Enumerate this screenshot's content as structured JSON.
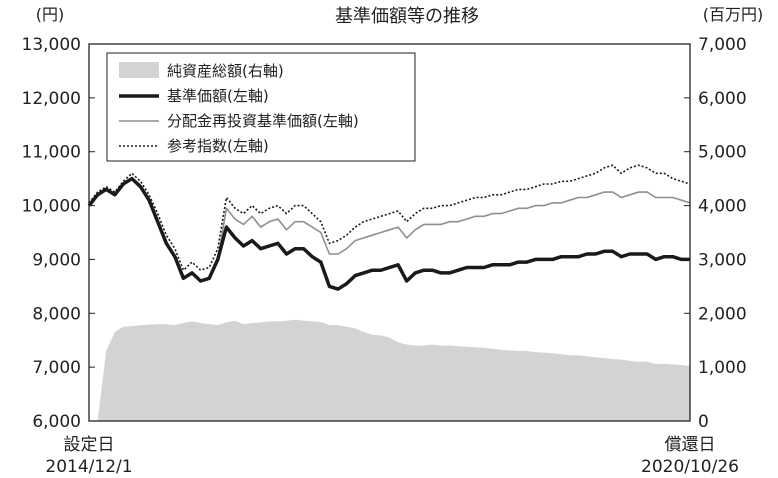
{
  "chart_data": {
    "type": "line",
    "title": "基準価額等の推移",
    "left_unit": "(円)",
    "right_unit": "(百万円)",
    "left_axis": {
      "min": 6000,
      "max": 13000,
      "ticks": [
        "6,000",
        "7,000",
        "8,000",
        "9,000",
        "10,000",
        "11,000",
        "12,000",
        "13,000"
      ],
      "tick_values": [
        6000,
        7000,
        8000,
        9000,
        10000,
        11000,
        12000,
        13000
      ]
    },
    "right_axis": {
      "min": 0,
      "max": 7000,
      "ticks": [
        "0",
        "1,000",
        "2,000",
        "3,000",
        "4,000",
        "5,000",
        "6,000",
        "7,000"
      ],
      "tick_values": [
        0,
        1000,
        2000,
        3000,
        4000,
        5000,
        6000,
        7000
      ]
    },
    "x_start": {
      "label_top": "設定日",
      "label_bottom": "2014/12/1"
    },
    "x_end": {
      "label_top": "償還日",
      "label_bottom": "2020/10/26"
    },
    "legend": {
      "position": "top-left",
      "items": [
        "純資産総額(右軸)",
        "基準価額(左軸)",
        "分配金再投資基準価額(左軸)",
        "参考指数(左軸)"
      ]
    },
    "colors": {
      "nav_area": "#d3d3d3",
      "nav": "#1a1a1a",
      "reinvest": "#8f8f8f",
      "index": "#1a1a1a"
    },
    "x": [
      "2014-12",
      "2015-01",
      "2015-02",
      "2015-03",
      "2015-04",
      "2015-05",
      "2015-06",
      "2015-07",
      "2015-08",
      "2015-09",
      "2015-10",
      "2015-11",
      "2015-12",
      "2016-01",
      "2016-02",
      "2016-03",
      "2016-04",
      "2016-05",
      "2016-06",
      "2016-07",
      "2016-08",
      "2016-09",
      "2016-10",
      "2016-11",
      "2016-12",
      "2017-01",
      "2017-02",
      "2017-03",
      "2017-04",
      "2017-05",
      "2017-06",
      "2017-07",
      "2017-08",
      "2017-09",
      "2017-10",
      "2017-11",
      "2017-12",
      "2018-01",
      "2018-02",
      "2018-03",
      "2018-04",
      "2018-05",
      "2018-06",
      "2018-07",
      "2018-08",
      "2018-09",
      "2018-10",
      "2018-11",
      "2018-12",
      "2019-01",
      "2019-02",
      "2019-03",
      "2019-04",
      "2019-05",
      "2019-06",
      "2019-07",
      "2019-08",
      "2019-09",
      "2019-10",
      "2019-11",
      "2019-12",
      "2020-01",
      "2020-02",
      "2020-03",
      "2020-04",
      "2020-05",
      "2020-06",
      "2020-07",
      "2020-08",
      "2020-09",
      "2020-10"
    ],
    "series": [
      {
        "name": "純資産総額(右軸)",
        "axis": "right",
        "style": "area",
        "values": [
          0,
          0,
          1300,
          1650,
          1750,
          1760,
          1780,
          1790,
          1800,
          1800,
          1780,
          1820,
          1850,
          1820,
          1800,
          1780,
          1830,
          1860,
          1800,
          1820,
          1830,
          1850,
          1850,
          1860,
          1880,
          1860,
          1850,
          1840,
          1780,
          1780,
          1750,
          1720,
          1650,
          1600,
          1590,
          1550,
          1460,
          1420,
          1400,
          1400,
          1420,
          1400,
          1400,
          1390,
          1380,
          1370,
          1360,
          1340,
          1320,
          1310,
          1300,
          1300,
          1280,
          1270,
          1260,
          1240,
          1220,
          1220,
          1200,
          1180,
          1170,
          1150,
          1140,
          1120,
          1100,
          1100,
          1060,
          1060,
          1050,
          1040,
          1020
        ]
      },
      {
        "name": "基準価額(左軸)",
        "axis": "left",
        "style": "solid-thick",
        "values": [
          10000,
          10200,
          10300,
          10200,
          10400,
          10500,
          10350,
          10100,
          9700,
          9300,
          9050,
          8650,
          8750,
          8600,
          8650,
          9000,
          9600,
          9400,
          9250,
          9350,
          9200,
          9250,
          9300,
          9100,
          9200,
          9200,
          9050,
          8950,
          8500,
          8450,
          8550,
          8700,
          8750,
          8800,
          8800,
          8850,
          8900,
          8600,
          8750,
          8800,
          8800,
          8750,
          8750,
          8800,
          8850,
          8850,
          8850,
          8900,
          8900,
          8900,
          8950,
          8950,
          9000,
          9000,
          9000,
          9050,
          9050,
          9050,
          9100,
          9100,
          9150,
          9150,
          9050,
          9100,
          9100,
          9100,
          9000,
          9050,
          9050,
          9000,
          9000
        ]
      },
      {
        "name": "分配金再投資基準価額(左軸)",
        "axis": "left",
        "style": "solid-thin",
        "values": [
          10000,
          10200,
          10300,
          10200,
          10400,
          10500,
          10350,
          10100,
          9700,
          9300,
          9050,
          8650,
          8750,
          8600,
          8650,
          9000,
          9950,
          9750,
          9650,
          9800,
          9600,
          9700,
          9750,
          9550,
          9700,
          9700,
          9600,
          9500,
          9100,
          9100,
          9200,
          9350,
          9400,
          9450,
          9500,
          9550,
          9600,
          9400,
          9550,
          9650,
          9650,
          9650,
          9700,
          9700,
          9750,
          9800,
          9800,
          9850,
          9850,
          9900,
          9950,
          9950,
          10000,
          10000,
          10050,
          10050,
          10100,
          10150,
          10150,
          10200,
          10250,
          10250,
          10150,
          10200,
          10250,
          10250,
          10150,
          10150,
          10150,
          10100,
          10050
        ]
      },
      {
        "name": "参考指数(左軸)",
        "axis": "left",
        "style": "dotted",
        "values": [
          10050,
          10250,
          10350,
          10250,
          10450,
          10600,
          10450,
          10200,
          9850,
          9450,
          9200,
          8800,
          8950,
          8800,
          8850,
          9200,
          10150,
          9950,
          9850,
          10000,
          9850,
          9950,
          10000,
          9850,
          10000,
          10000,
          9850,
          9700,
          9300,
          9350,
          9450,
          9600,
          9700,
          9750,
          9800,
          9850,
          9900,
          9700,
          9850,
          9950,
          9950,
          10000,
          10000,
          10050,
          10100,
          10150,
          10150,
          10200,
          10200,
          10250,
          10300,
          10300,
          10350,
          10400,
          10400,
          10450,
          10450,
          10500,
          10550,
          10600,
          10700,
          10750,
          10600,
          10700,
          10750,
          10700,
          10600,
          10600,
          10500,
          10450,
          10400
        ]
      }
    ]
  }
}
